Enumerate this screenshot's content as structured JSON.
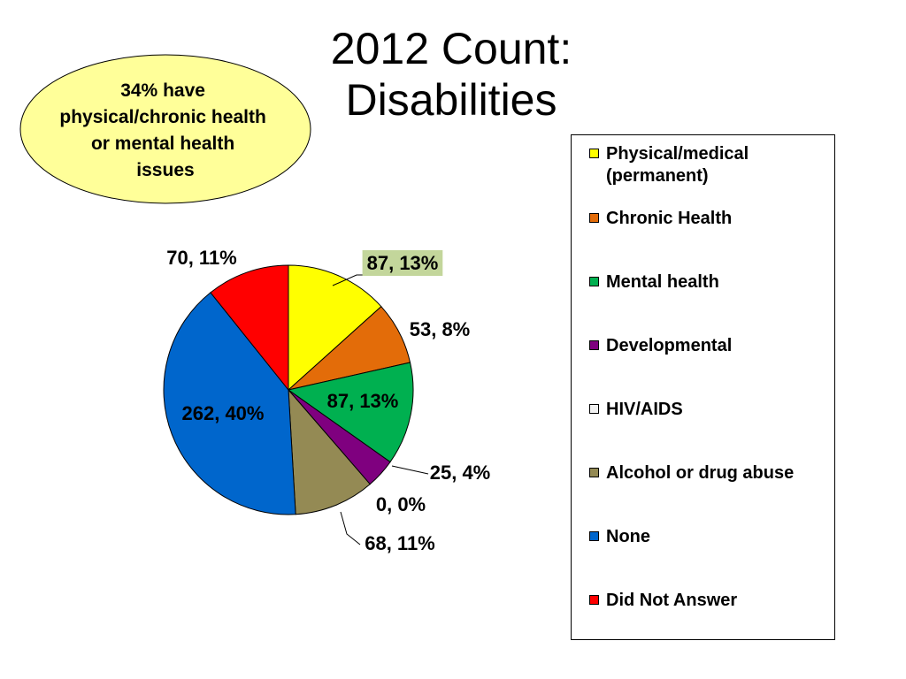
{
  "title": {
    "line1": "2012 Count:",
    "line2": "Disabilities"
  },
  "callout": {
    "lines": [
      "34% have",
      "physical/chronic health",
      "or mental health",
      "issues"
    ],
    "fill": "#FFFF99"
  },
  "chart_data": {
    "type": "pie",
    "title": "2012 Count: Disabilities",
    "legend_position": "right",
    "slices": [
      {
        "name": "Physical/medical (permanent)",
        "value": 87,
        "percent": 13,
        "color": "#FFFF00",
        "label": "87, 13%",
        "label_highlight": "#C3D69B"
      },
      {
        "name": "Chronic Health",
        "value": 53,
        "percent": 8,
        "color": "#E36C09",
        "label": "53, 8%"
      },
      {
        "name": "Mental health",
        "value": 87,
        "percent": 13,
        "color": "#00B050",
        "label": "87, 13%"
      },
      {
        "name": "Developmental",
        "value": 25,
        "percent": 4,
        "color": "#7F007F",
        "label": "25, 4%"
      },
      {
        "name": "HIV/AIDS",
        "value": 0,
        "percent": 0,
        "color": "#F2F2F2",
        "label": "0, 0%"
      },
      {
        "name": "Alcohol or drug abuse",
        "value": 68,
        "percent": 11,
        "color": "#948A54",
        "label": "68, 11%"
      },
      {
        "name": "None",
        "value": 262,
        "percent": 40,
        "color": "#0066CC",
        "label": "262, 40%"
      },
      {
        "name": "Did Not Answer",
        "value": 70,
        "percent": 11,
        "color": "#FF0000",
        "label": "70, 11%"
      }
    ]
  },
  "legend": {
    "items": [
      {
        "lines": [
          "Physical/medical",
          "(permanent)"
        ],
        "color": "#FFFF00"
      },
      {
        "lines": [
          "Chronic Health"
        ],
        "color": "#E36C09"
      },
      {
        "lines": [
          "Mental health"
        ],
        "color": "#00B050"
      },
      {
        "lines": [
          "Developmental"
        ],
        "color": "#7F007F"
      },
      {
        "lines": [
          "HIV/AIDS"
        ],
        "color": "#F2F2F2"
      },
      {
        "lines": [
          "Alcohol or drug abuse"
        ],
        "color": "#948A54"
      },
      {
        "lines": [
          "None"
        ],
        "color": "#0066CC"
      },
      {
        "lines": [
          "Did Not Answer"
        ],
        "color": "#FF0000"
      }
    ]
  }
}
